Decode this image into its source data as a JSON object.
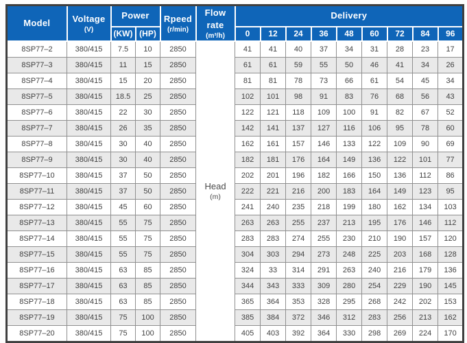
{
  "table": {
    "headers": {
      "model": "Model",
      "voltage": "Voltage",
      "voltage_unit": "(V)",
      "power": "Power",
      "power_kw": "(KW)",
      "power_hp": "(HP)",
      "rpeed": "Rpeed",
      "rpeed_unit": "(r/min)",
      "flow_rate": "Flow rate",
      "flow_rate_unit": "(m³/h)",
      "delivery": "Delivery",
      "delivery_cols": [
        "0",
        "12",
        "24",
        "36",
        "48",
        "60",
        "72",
        "84",
        "96"
      ]
    },
    "head_cell": {
      "line1": "Head",
      "line2": "(m)"
    },
    "rows": [
      {
        "model": "8SP77–2",
        "voltage": "380/415",
        "kw": "7.5",
        "hp": "10",
        "speed": "2850",
        "delivery": [
          "41",
          "41",
          "40",
          "37",
          "34",
          "31",
          "28",
          "23",
          "17"
        ]
      },
      {
        "model": "8SP77–3",
        "voltage": "380/415",
        "kw": "11",
        "hp": "15",
        "speed": "2850",
        "delivery": [
          "61",
          "61",
          "59",
          "55",
          "50",
          "46",
          "41",
          "34",
          "26"
        ]
      },
      {
        "model": "8SP77–4",
        "voltage": "380/415",
        "kw": "15",
        "hp": "20",
        "speed": "2850",
        "delivery": [
          "81",
          "81",
          "78",
          "73",
          "66",
          "61",
          "54",
          "45",
          "34"
        ]
      },
      {
        "model": "8SP77–5",
        "voltage": "380/415",
        "kw": "18.5",
        "hp": "25",
        "speed": "2850",
        "delivery": [
          "102",
          "101",
          "98",
          "91",
          "83",
          "76",
          "68",
          "56",
          "43"
        ]
      },
      {
        "model": "8SP77–6",
        "voltage": "380/415",
        "kw": "22",
        "hp": "30",
        "speed": "2850",
        "delivery": [
          "122",
          "121",
          "118",
          "109",
          "100",
          "91",
          "82",
          "67",
          "52"
        ]
      },
      {
        "model": "8SP77–7",
        "voltage": "380/415",
        "kw": "26",
        "hp": "35",
        "speed": "2850",
        "delivery": [
          "142",
          "141",
          "137",
          "127",
          "116",
          "106",
          "95",
          "78",
          "60"
        ]
      },
      {
        "model": "8SP77–8",
        "voltage": "380/415",
        "kw": "30",
        "hp": "40",
        "speed": "2850",
        "delivery": [
          "162",
          "161",
          "157",
          "146",
          "133",
          "122",
          "109",
          "90",
          "69"
        ]
      },
      {
        "model": "8SP77–9",
        "voltage": "380/415",
        "kw": "30",
        "hp": "40",
        "speed": "2850",
        "delivery": [
          "182",
          "181",
          "176",
          "164",
          "149",
          "136",
          "122",
          "101",
          "77"
        ]
      },
      {
        "model": "8SP77–10",
        "voltage": "380/415",
        "kw": "37",
        "hp": "50",
        "speed": "2850",
        "delivery": [
          "202",
          "201",
          "196",
          "182",
          "166",
          "150",
          "136",
          "112",
          "86"
        ]
      },
      {
        "model": "8SP77–11",
        "voltage": "380/415",
        "kw": "37",
        "hp": "50",
        "speed": "2850",
        "delivery": [
          "222",
          "221",
          "216",
          "200",
          "183",
          "164",
          "149",
          "123",
          "95"
        ]
      },
      {
        "model": "8SP77–12",
        "voltage": "380/415",
        "kw": "45",
        "hp": "60",
        "speed": "2850",
        "delivery": [
          "241",
          "240",
          "235",
          "218",
          "199",
          "180",
          "162",
          "134",
          "103"
        ]
      },
      {
        "model": "8SP77–13",
        "voltage": "380/415",
        "kw": "55",
        "hp": "75",
        "speed": "2850",
        "delivery": [
          "263",
          "263",
          "255",
          "237",
          "213",
          "195",
          "176",
          "146",
          "112"
        ]
      },
      {
        "model": "8SP77–14",
        "voltage": "380/415",
        "kw": "55",
        "hp": "75",
        "speed": "2850",
        "delivery": [
          "283",
          "283",
          "274",
          "255",
          "230",
          "210",
          "190",
          "157",
          "120"
        ]
      },
      {
        "model": "8SP77–15",
        "voltage": "380/415",
        "kw": "55",
        "hp": "75",
        "speed": "2850",
        "delivery": [
          "304",
          "303",
          "294",
          "273",
          "248",
          "225",
          "203",
          "168",
          "128"
        ]
      },
      {
        "model": "8SP77–16",
        "voltage": "380/415",
        "kw": "63",
        "hp": "85",
        "speed": "2850",
        "delivery": [
          "324",
          "33",
          "314",
          "291",
          "263",
          "240",
          "216",
          "179",
          "136"
        ]
      },
      {
        "model": "8SP77–17",
        "voltage": "380/415",
        "kw": "63",
        "hp": "85",
        "speed": "2850",
        "delivery": [
          "344",
          "343",
          "333",
          "309",
          "280",
          "254",
          "229",
          "190",
          "145"
        ]
      },
      {
        "model": "8SP77–18",
        "voltage": "380/415",
        "kw": "63",
        "hp": "85",
        "speed": "2850",
        "delivery": [
          "365",
          "364",
          "353",
          "328",
          "295",
          "268",
          "242",
          "202",
          "153"
        ]
      },
      {
        "model": "8SP77–19",
        "voltage": "380/415",
        "kw": "75",
        "hp": "100",
        "speed": "2850",
        "delivery": [
          "385",
          "384",
          "372",
          "346",
          "312",
          "283",
          "256",
          "213",
          "162"
        ]
      },
      {
        "model": "8SP77–20",
        "voltage": "380/415",
        "kw": "75",
        "hp": "100",
        "speed": "2850",
        "delivery": [
          "405",
          "403",
          "392",
          "364",
          "330",
          "298",
          "269",
          "224",
          "170"
        ]
      }
    ]
  },
  "colors": {
    "header_bg": "#0f65b8",
    "header_text": "#ffffff",
    "stripe": "#e9e9e9",
    "border_dark": "#3f3f3f",
    "grid": "#8f8f8f",
    "body_text": "#404040"
  }
}
